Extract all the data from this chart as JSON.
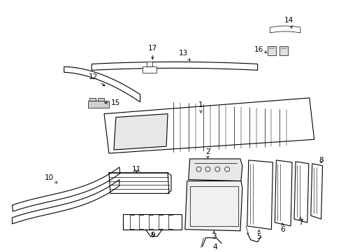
{
  "background_color": "#ffffff",
  "line_color": "#000000",
  "fig_width": 4.89,
  "fig_height": 3.6,
  "dpi": 100
}
